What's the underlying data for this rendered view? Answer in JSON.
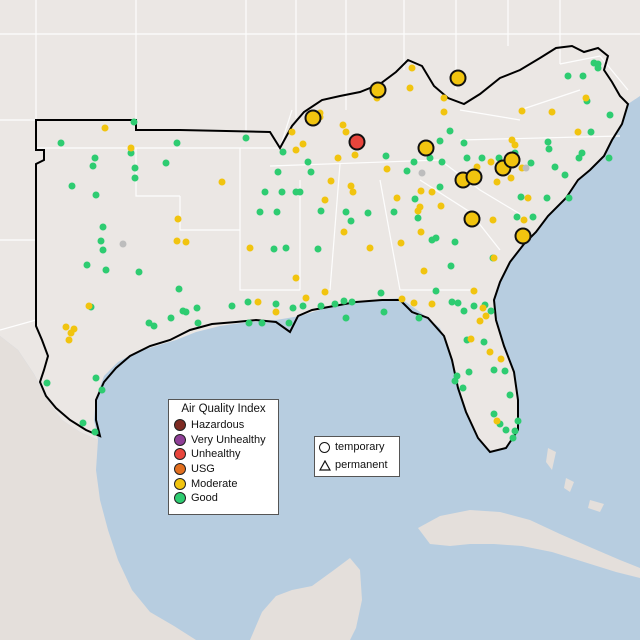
{
  "legend": {
    "title": "Air Quality Index",
    "categories": [
      {
        "label": "Hazardous",
        "color": "#7e2b23"
      },
      {
        "label": "Very Unhealthy",
        "color": "#8f3f97"
      },
      {
        "label": "Unhealthy",
        "color": "#e8453c"
      },
      {
        "label": "USG",
        "color": "#e26f1e"
      },
      {
        "label": "Moderate",
        "color": "#f1c40f"
      },
      {
        "label": "Good",
        "color": "#2ecc71"
      }
    ]
  },
  "site_types": [
    {
      "label": "temporary",
      "shape": "circle"
    },
    {
      "label": "permanent",
      "shape": "triangle"
    }
  ],
  "colors": {
    "water": "#b7cde0",
    "land": "#ebe7e4",
    "boundary": "#111111",
    "state_line": "#ffffff"
  }
}
